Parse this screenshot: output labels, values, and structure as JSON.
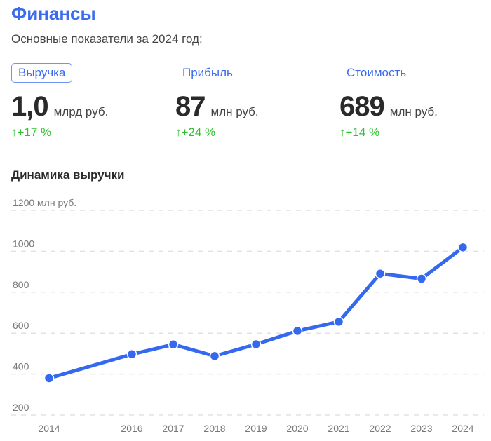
{
  "header": {
    "title": "Финансы",
    "subtitle": "Основные показатели за 2024 год:"
  },
  "metrics": [
    {
      "label": "Выручка",
      "value": "1,0",
      "unit": "млрд руб.",
      "change": "+17 %",
      "active": true
    },
    {
      "label": "Прибыль",
      "value": "87",
      "unit": "млн руб.",
      "change": "+24 %",
      "active": false
    },
    {
      "label": "Стоимость",
      "value": "689",
      "unit": "млн руб.",
      "change": "+14 %",
      "active": false
    }
  ],
  "change_icon": "arrow-up-icon",
  "colors": {
    "accent": "#3b6cf0",
    "positive": "#2fbf2f",
    "line": "#3468ee"
  },
  "chart_data": {
    "type": "line",
    "title": "Динамика выручки",
    "ylabel": "млн руб.",
    "x": [
      2014,
      2016,
      2017,
      2018,
      2019,
      2020,
      2021,
      2022,
      2023,
      2024
    ],
    "xtick_labels": [
      "2014",
      "2016",
      "2017",
      "2018",
      "2019",
      "2020",
      "2021",
      "2022",
      "2023",
      "2024"
    ],
    "values": [
      380,
      497,
      545,
      488,
      546,
      611,
      656,
      891,
      866,
      1019
    ],
    "yticks": [
      200,
      400,
      600,
      800,
      1000,
      1200
    ],
    "ytick_labels": [
      "200",
      "400",
      "600",
      "800",
      "1000",
      "1200 млн руб."
    ],
    "ylim": [
      200,
      1200
    ],
    "grid": true
  }
}
